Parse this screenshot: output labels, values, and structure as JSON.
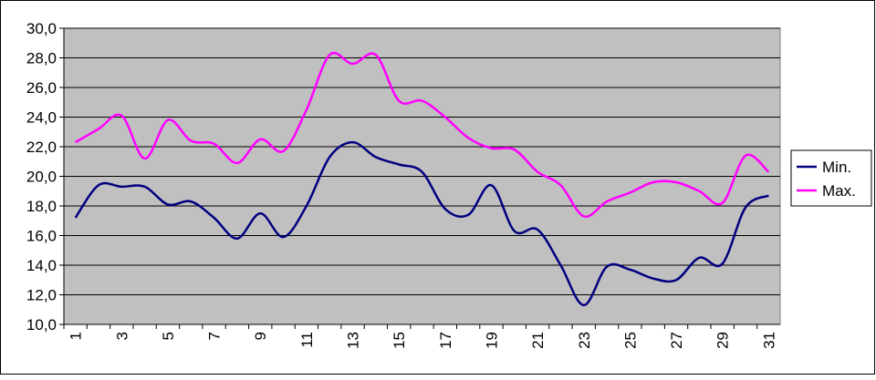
{
  "chart_data": {
    "type": "line",
    "categories": [
      "1",
      null,
      "3",
      null,
      "5",
      null,
      "7",
      null,
      "9",
      null,
      "11",
      null,
      "13",
      null,
      "15",
      null,
      "17",
      null,
      "19",
      null,
      "21",
      null,
      "23",
      null,
      "25",
      null,
      "27",
      null,
      "29",
      null,
      "31"
    ],
    "series": [
      {
        "name": "Min.",
        "color": "#000080",
        "values": [
          17.2,
          19.4,
          19.3,
          19.3,
          18.1,
          18.3,
          17.2,
          15.8,
          17.5,
          15.9,
          18.0,
          21.3,
          22.3,
          21.3,
          20.8,
          20.3,
          17.8,
          17.4,
          19.4,
          16.3,
          16.4,
          14.0,
          11.3,
          13.9,
          13.7,
          13.1,
          13.0,
          14.5,
          14.1,
          17.9,
          18.7
        ]
      },
      {
        "name": "Max.",
        "color": "#ff00ff",
        "values": [
          22.3,
          23.2,
          24.1,
          21.2,
          23.8,
          22.4,
          22.2,
          20.9,
          22.5,
          21.7,
          24.5,
          28.2,
          27.6,
          28.2,
          25.1,
          25.1,
          24.0,
          22.6,
          21.9,
          21.8,
          20.3,
          19.4,
          17.3,
          18.3,
          18.9,
          19.6,
          19.6,
          19.0,
          18.2,
          21.4,
          20.3
        ]
      }
    ],
    "ylim": [
      10,
      30
    ],
    "yticks": [
      {
        "value": 10,
        "label": "10,0"
      },
      {
        "value": 12,
        "label": "12,0"
      },
      {
        "value": 14,
        "label": "14,0"
      },
      {
        "value": 16,
        "label": "16,0"
      },
      {
        "value": 18,
        "label": "18,0"
      },
      {
        "value": 20,
        "label": "20,0"
      },
      {
        "value": 22,
        "label": "22,0"
      },
      {
        "value": 24,
        "label": "24,0"
      },
      {
        "value": 26,
        "label": "26,0"
      },
      {
        "value": 28,
        "label": "28,0"
      },
      {
        "value": 30,
        "label": "30,0"
      }
    ],
    "grid": true,
    "legend": "right",
    "plot_background": "#c0c0c0"
  }
}
